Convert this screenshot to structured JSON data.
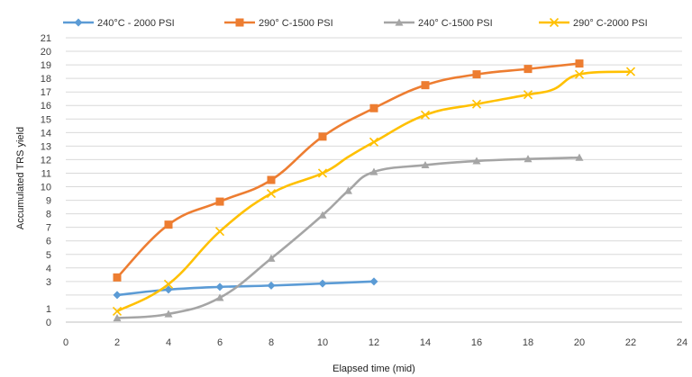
{
  "chart_data": {
    "type": "line",
    "xlabel": "Elapsed time (mid)",
    "ylabel": "Accumulated TRS yield",
    "xlim": [
      0,
      24
    ],
    "ylim": [
      0,
      21
    ],
    "x_ticks": [
      "0",
      "2",
      "4",
      "6",
      "8",
      "10",
      "12",
      "14",
      "16",
      "18",
      "20",
      "22",
      "24"
    ],
    "y_ticks": [
      "0",
      "1",
      "",
      "3",
      "4",
      "5",
      "6",
      "7",
      "8",
      "9",
      "10",
      "11",
      "12",
      "13",
      "14",
      "15",
      "16",
      "17",
      "18",
      "19",
      "20",
      "21"
    ],
    "grid": "horizontal",
    "legend_position": "top",
    "series": [
      {
        "name": "240°C - 2000 PSI",
        "color": "#5b9bd5",
        "marker": "diamond",
        "points": [
          [
            2,
            2.0
          ],
          [
            4,
            2.4
          ],
          [
            6,
            2.6
          ],
          [
            8,
            2.7
          ],
          [
            10,
            2.85
          ],
          [
            12,
            3.0
          ]
        ]
      },
      {
        "name": "290° C-1500 PSI",
        "color": "#ed7d31",
        "marker": "square",
        "points": [
          [
            2,
            3.3
          ],
          [
            4,
            7.2
          ],
          [
            6,
            8.9
          ],
          [
            8,
            10.5
          ],
          [
            10,
            13.7
          ],
          [
            12,
            15.8
          ],
          [
            14,
            17.5
          ],
          [
            16,
            18.3
          ],
          [
            18,
            18.7
          ],
          [
            20,
            19.1
          ]
        ]
      },
      {
        "name": "240° C-1500 PSI",
        "color": "#a5a5a5",
        "marker": "triangle",
        "points": [
          [
            2,
            0.3
          ],
          [
            4,
            0.6
          ],
          [
            6,
            1.8
          ],
          [
            8,
            4.7
          ],
          [
            10,
            7.9
          ],
          [
            11,
            9.7
          ],
          [
            12,
            11.1
          ],
          [
            14,
            11.6
          ],
          [
            16,
            11.9
          ],
          [
            18,
            12.05
          ],
          [
            20,
            12.15
          ]
        ]
      },
      {
        "name": "290° C-2000 PSI",
        "color": "#ffc000",
        "marker": "x",
        "points": [
          [
            2,
            0.8
          ],
          [
            4,
            2.8
          ],
          [
            6,
            6.7
          ],
          [
            8,
            9.5
          ],
          [
            10,
            11.0
          ],
          [
            11,
            12.2
          ],
          [
            12,
            13.3
          ],
          [
            14,
            15.3
          ],
          [
            16,
            16.1
          ],
          [
            18,
            16.8
          ],
          [
            19,
            17.2
          ],
          [
            20,
            18.3
          ],
          [
            22,
            18.5
          ]
        ]
      }
    ]
  }
}
